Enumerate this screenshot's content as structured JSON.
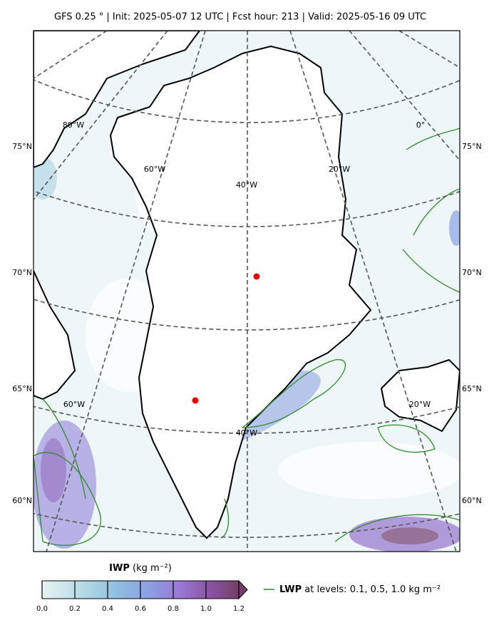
{
  "title": "GFS 0.25 °  |  Init: 2025-05-07 12 UTC  |  Fcst hour: 213  |  Valid: 2025-05-16 09 UTC",
  "map": {
    "lat_labels": [
      "75°N",
      "70°N",
      "65°N",
      "60°N"
    ],
    "lon_labels_upper": [
      "80°W",
      "60°W",
      "40°W",
      "20°W",
      "0°"
    ],
    "lon_labels_lower": [
      "60°W",
      "40°W",
      "20°W"
    ]
  },
  "colorbar": {
    "title": "IWP",
    "unit": "(kg m⁻²)",
    "ticks": [
      {
        "value": 0,
        "label": "0.0"
      },
      0.2,
      0.4,
      0.6,
      0.8,
      {
        "value": 1,
        "label": "1.0"
      },
      1.2
    ]
  },
  "legend": {
    "name": "LWP",
    "text": "at levels: 0.1, 0.5, 1.0  kg m⁻²"
  }
}
